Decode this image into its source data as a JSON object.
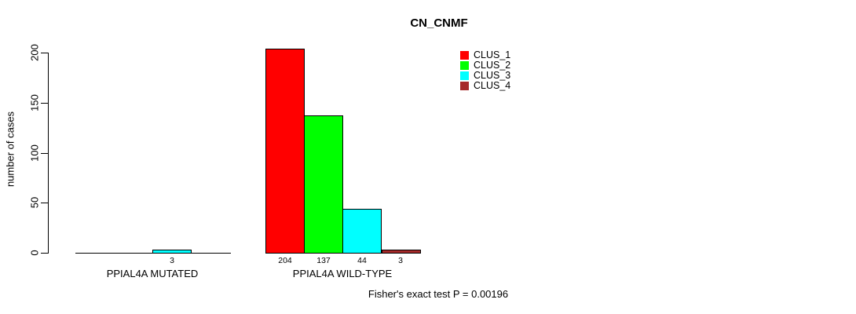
{
  "chart_data": {
    "type": "bar",
    "title": "CN_CNMF",
    "ylabel": "number of cases",
    "xlabel": "",
    "annotation": "Fisher's exact test P = 0.00196",
    "ylim": [
      0,
      200
    ],
    "yticks": [
      0,
      50,
      100,
      150,
      200
    ],
    "grid": false,
    "legend_position": "top-right",
    "background_color": "#ffffff",
    "axis_color": "#000000",
    "bar_border_color": "#000000",
    "categories": [
      "PPIAL4A MUTATED",
      "PPIAL4A WILD-TYPE"
    ],
    "series": [
      {
        "name": "CLUS_1",
        "color": "#ff0000",
        "values": [
          0,
          204
        ]
      },
      {
        "name": "CLUS_2",
        "color": "#00ff00",
        "values": [
          0,
          137
        ]
      },
      {
        "name": "CLUS_3",
        "color": "#00ffff",
        "values": [
          3,
          44
        ]
      },
      {
        "name": "CLUS_4",
        "color": "#a52a2a",
        "values": [
          0,
          3
        ]
      }
    ],
    "bar_value_labels": [
      [
        "",
        "",
        "3",
        ""
      ],
      [
        "204",
        "137",
        "44",
        "3"
      ]
    ]
  }
}
